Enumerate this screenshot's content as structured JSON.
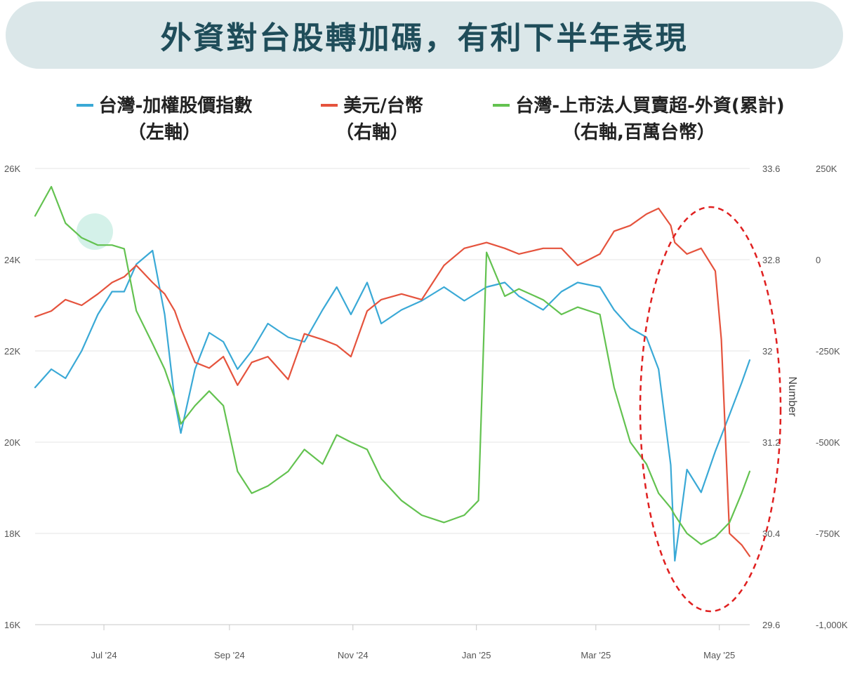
{
  "header": {
    "title": "外資對台股轉加碼，有利下半年表現"
  },
  "legend": [
    {
      "line1": "台灣-加權股價指數",
      "line2": "（左軸）",
      "color": "#3aa9d6"
    },
    {
      "line1": "美元/台幣",
      "line2": "（右軸）",
      "color": "#e5533d"
    },
    {
      "line1": "台灣-上市法人買賣超-外資(累計)",
      "line2": "（右軸,百萬台幣）",
      "color": "#63c250"
    }
  ],
  "chart_data": {
    "type": "line",
    "x_ticks": [
      "Jul '24",
      "Sep '24",
      "Nov '24",
      "Jan '25",
      "Mar '25",
      "May '25"
    ],
    "x_range": [
      "2024-05-28",
      "2025-05-16"
    ],
    "left_axis": {
      "ticks": [
        "16K",
        "18K",
        "20K",
        "22K",
        "24K",
        "26K"
      ],
      "ylim": [
        16000,
        26000
      ]
    },
    "right_axis_1": {
      "ticks": [
        "29.6",
        "30.4",
        "31.2",
        "32",
        "32.8",
        "33.6"
      ],
      "ylim": [
        29.6,
        33.6
      ],
      "title": "Number"
    },
    "right_axis_2": {
      "ticks": [
        "-1,000K",
        "-750K",
        "-500K",
        "-250K",
        "0",
        "250K"
      ],
      "ylim": [
        -1000000,
        250000
      ]
    },
    "grid": true,
    "annotation": "red dashed ellipse highlighting Apr–May 2025",
    "series": [
      {
        "name": "台灣-加權股價指數",
        "axis": "left",
        "color": "#3aa9d6",
        "x": [
          "2024-05-28",
          "2024-06-05",
          "2024-06-12",
          "2024-06-20",
          "2024-06-28",
          "2024-07-05",
          "2024-07-11",
          "2024-07-17",
          "2024-07-25",
          "2024-07-31",
          "2024-08-05",
          "2024-08-08",
          "2024-08-15",
          "2024-08-22",
          "2024-08-29",
          "2024-09-05",
          "2024-09-12",
          "2024-09-20",
          "2024-09-30",
          "2024-10-08",
          "2024-10-17",
          "2024-10-24",
          "2024-10-31",
          "2024-11-08",
          "2024-11-15",
          "2024-11-25",
          "2024-12-05",
          "2024-12-16",
          "2024-12-26",
          "2025-01-06",
          "2025-01-15",
          "2025-01-22",
          "2025-02-03",
          "2025-02-12",
          "2025-02-20",
          "2025-03-03",
          "2025-03-10",
          "2025-03-18",
          "2025-03-26",
          "2025-04-01",
          "2025-04-07",
          "2025-04-09",
          "2025-04-15",
          "2025-04-22",
          "2025-04-29",
          "2025-05-06",
          "2025-05-12",
          "2025-05-16"
        ],
        "values": [
          21200,
          21600,
          21400,
          22000,
          22800,
          23300,
          23300,
          23900,
          24200,
          22800,
          20900,
          20200,
          21600,
          22400,
          22200,
          21600,
          22000,
          22600,
          22300,
          22200,
          22900,
          23400,
          22800,
          23500,
          22600,
          22900,
          23100,
          23400,
          23100,
          23400,
          23500,
          23200,
          22900,
          23300,
          23500,
          23400,
          22900,
          22500,
          22300,
          21600,
          19500,
          17400,
          19400,
          18900,
          19800,
          20600,
          21300,
          21800
        ]
      },
      {
        "name": "美元/台幣",
        "axis": "right_1",
        "color": "#e5533d",
        "x": [
          "2024-05-28",
          "2024-06-05",
          "2024-06-12",
          "2024-06-20",
          "2024-06-28",
          "2024-07-05",
          "2024-07-11",
          "2024-07-17",
          "2024-07-25",
          "2024-07-31",
          "2024-08-05",
          "2024-08-08",
          "2024-08-15",
          "2024-08-22",
          "2024-08-29",
          "2024-09-05",
          "2024-09-12",
          "2024-09-20",
          "2024-09-30",
          "2024-10-08",
          "2024-10-17",
          "2024-10-24",
          "2024-10-31",
          "2024-11-08",
          "2024-11-15",
          "2024-11-25",
          "2024-12-05",
          "2024-12-16",
          "2024-12-26",
          "2025-01-06",
          "2025-01-15",
          "2025-01-22",
          "2025-02-03",
          "2025-02-12",
          "2025-02-20",
          "2025-03-03",
          "2025-03-10",
          "2025-03-18",
          "2025-03-26",
          "2025-04-01",
          "2025-04-07",
          "2025-04-09",
          "2025-04-15",
          "2025-04-22",
          "2025-04-29",
          "2025-05-02",
          "2025-05-06",
          "2025-05-12",
          "2025-05-16"
        ],
        "values": [
          32.3,
          32.35,
          32.45,
          32.4,
          32.5,
          32.6,
          32.65,
          32.75,
          32.6,
          32.5,
          32.35,
          32.2,
          31.9,
          31.85,
          31.95,
          31.7,
          31.9,
          31.95,
          31.75,
          32.15,
          32.1,
          32.05,
          31.95,
          32.35,
          32.45,
          32.5,
          32.45,
          32.75,
          32.9,
          32.95,
          32.9,
          32.85,
          32.9,
          32.9,
          32.75,
          32.85,
          33.05,
          33.1,
          33.2,
          33.25,
          33.1,
          32.95,
          32.85,
          32.9,
          32.7,
          32.1,
          30.4,
          30.3,
          30.2
        ]
      },
      {
        "name": "台灣-上市法人買賣超-外資(累計)",
        "axis": "right_2",
        "color": "#63c250",
        "x": [
          "2024-05-28",
          "2024-06-05",
          "2024-06-12",
          "2024-06-20",
          "2024-06-28",
          "2024-07-05",
          "2024-07-11",
          "2024-07-17",
          "2024-07-25",
          "2024-07-31",
          "2024-08-05",
          "2024-08-08",
          "2024-08-15",
          "2024-08-22",
          "2024-08-29",
          "2024-09-05",
          "2024-09-12",
          "2024-09-20",
          "2024-09-30",
          "2024-10-08",
          "2024-10-17",
          "2024-10-24",
          "2024-10-31",
          "2024-11-08",
          "2024-11-15",
          "2024-11-25",
          "2024-12-05",
          "2024-12-16",
          "2024-12-26",
          "2025-01-02",
          "2025-01-06",
          "2025-01-15",
          "2025-01-22",
          "2025-02-03",
          "2025-02-12",
          "2025-02-20",
          "2025-03-03",
          "2025-03-10",
          "2025-03-18",
          "2025-03-26",
          "2025-04-01",
          "2025-04-07",
          "2025-04-09",
          "2025-04-15",
          "2025-04-22",
          "2025-04-29",
          "2025-05-06",
          "2025-05-12",
          "2025-05-16"
        ],
        "values": [
          120000,
          200000,
          100000,
          60000,
          40000,
          40000,
          30000,
          -140000,
          -230000,
          -300000,
          -380000,
          -450000,
          -400000,
          -360000,
          -400000,
          -580000,
          -640000,
          -620000,
          -580000,
          -520000,
          -560000,
          -480000,
          -500000,
          -520000,
          -600000,
          -660000,
          -700000,
          -720000,
          -700000,
          -660000,
          20000,
          -100000,
          -80000,
          -110000,
          -150000,
          -130000,
          -150000,
          -350000,
          -500000,
          -560000,
          -640000,
          -680000,
          -700000,
          -750000,
          -780000,
          -760000,
          -720000,
          -640000,
          -580000
        ]
      }
    ]
  }
}
